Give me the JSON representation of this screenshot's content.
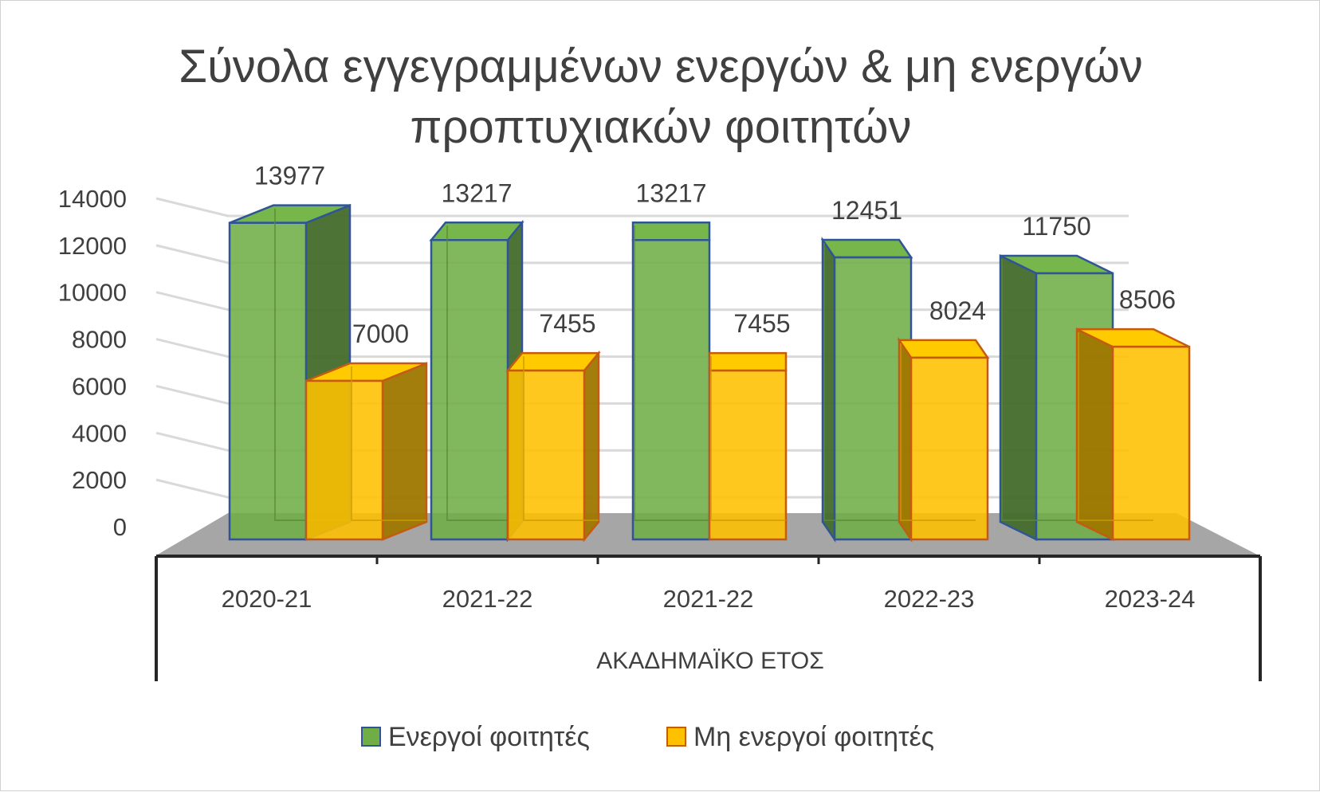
{
  "chart_data": {
    "type": "bar",
    "title_lines": [
      "Σύνολα εγγεγραμμένων ενεργών & μη ενεργών",
      "προπτυχιακών φοιτητών"
    ],
    "xlabel": "ΑΚΑΔΗΜΑΪΚΟ ΕΤΟΣ",
    "ylabel": "",
    "ylim": [
      0,
      14000
    ],
    "yticks": [
      "0",
      "2000",
      "4000",
      "6000",
      "8000",
      "10000",
      "12000",
      "14000"
    ],
    "categories": [
      "2020-21",
      "2021-22",
      "2021-22",
      "2022-23",
      "2023-24"
    ],
    "series": [
      {
        "name": "Ενεργοί φοιτητές",
        "values": [
          13977,
          13217,
          13217,
          12451,
          11750
        ],
        "color": "#70ad47"
      },
      {
        "name": "Μη ενεργοί φοιτητές",
        "values": [
          7000,
          7455,
          7455,
          8024,
          8506
        ],
        "color": "#ffc000"
      }
    ],
    "grid": true,
    "legend_position": "bottom",
    "style": "3d-column"
  }
}
